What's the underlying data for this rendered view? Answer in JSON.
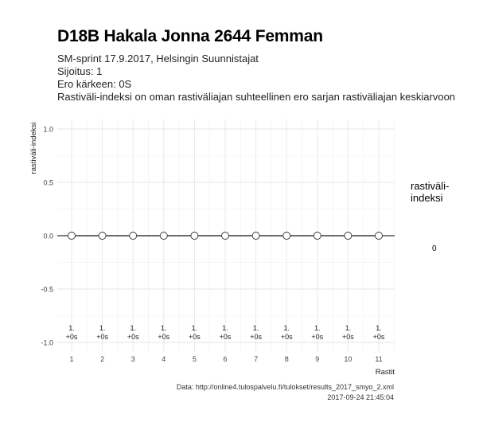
{
  "header": {
    "title": "D18B Hakala Jonna 2644 Femman",
    "subtitle_lines": [
      "SM-sprint 17.9.2017, Helsingin Suunnistajat",
      "Sijoitus: 1",
      "Ero kärkeen: 0S",
      "Rastiväli-indeksi on oman rastiväliajan suhteellinen ero sarjan rastiväliajan keskiarvoon"
    ]
  },
  "legend": {
    "title": "rastiväli-indeksi",
    "value": "0"
  },
  "caption": {
    "source": "Data: http://online4.tulospalvelu.fi/tulokset/results_2017_smyo_2.xml",
    "timestamp": "2017-09-24 21:45:04"
  },
  "chart_data": {
    "type": "line",
    "xlabel": "Rastit",
    "ylabel": "rastiväli-indeksi",
    "x": [
      1,
      2,
      3,
      4,
      5,
      6,
      7,
      8,
      9,
      10,
      11
    ],
    "y": [
      0,
      0,
      0,
      0,
      0,
      0,
      0,
      0,
      0,
      0,
      0
    ],
    "point_labels": [
      [
        "1.",
        "+0s"
      ],
      [
        "1.",
        "+0s"
      ],
      [
        "1.",
        "+0s"
      ],
      [
        "1.",
        "+0s"
      ],
      [
        "1.",
        "+0s"
      ],
      [
        "1.",
        "+0s"
      ],
      [
        "1.",
        "+0s"
      ],
      [
        "1.",
        "+0s"
      ],
      [
        "1.",
        "+0s"
      ],
      [
        "1.",
        "+0s"
      ],
      [
        "1.",
        "+0s"
      ]
    ],
    "yticks": [
      "1.0",
      "0.5",
      "0.0",
      "-0.5",
      "-1.0"
    ],
    "ytick_values": [
      1.0,
      0.5,
      0.0,
      -0.5,
      -1.0
    ],
    "xticks": [
      "1",
      "2",
      "3",
      "4",
      "5",
      "6",
      "7",
      "8",
      "9",
      "10",
      "11"
    ],
    "ylim": [
      -1.0,
      1.0
    ],
    "xlim": [
      1,
      11
    ],
    "grid": true,
    "reference_line_y": 0,
    "colors": {
      "line": "#333333",
      "point_fill": "#ffffff",
      "point_stroke": "#333333",
      "grid": "#e6e6e6"
    }
  }
}
